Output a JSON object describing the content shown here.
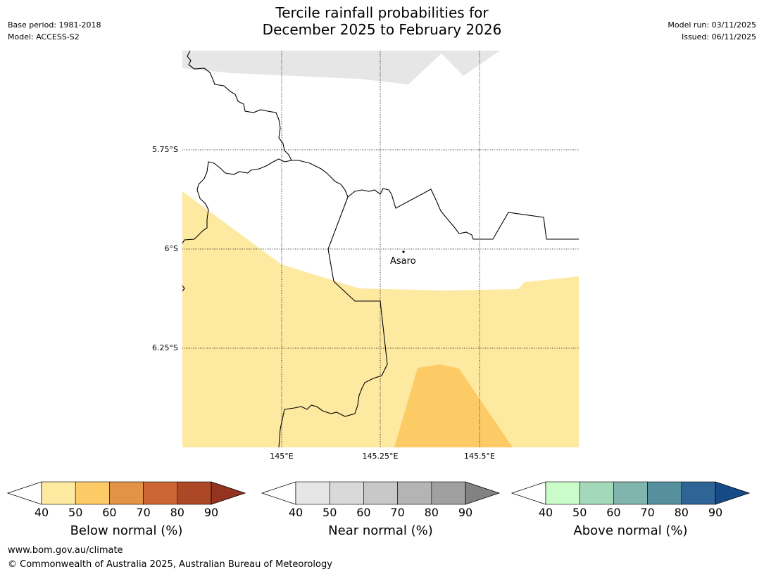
{
  "title": {
    "line1": "Tercile rainfall probabilities for",
    "line2": "December 2025 to February 2026"
  },
  "meta_left": {
    "base_period": "Base period: 1981-2018",
    "model": "Model: ACCESS-S2"
  },
  "meta_right": {
    "model_run": "Model run: 03/11/2025",
    "issued": "Issued: 06/11/2025"
  },
  "map": {
    "lat_labels": [
      "5.75°S",
      "6°S",
      "6.25°S"
    ],
    "lon_labels": [
      "145°E",
      "145.25°E",
      "145.5°E"
    ],
    "place": "Asaro",
    "colors": {
      "below_40_50": "#fee9a1",
      "below_50_60": "#fdcb65",
      "near_40_50": "#e6e6e6",
      "border": "#000000",
      "grid": "#000000"
    }
  },
  "colorbars": [
    {
      "title": "Below normal (%)",
      "ticks": [
        "40",
        "50",
        "60",
        "70",
        "80",
        "90"
      ],
      "colors": [
        "#fee9a1",
        "#fdcb65",
        "#e29346",
        "#cc6534",
        "#ad4826",
        "#943320"
      ]
    },
    {
      "title": "Near normal (%)",
      "ticks": [
        "40",
        "50",
        "60",
        "70",
        "80",
        "90"
      ],
      "colors": [
        "#e6e6e6",
        "#d9d9d9",
        "#c8c8c8",
        "#b4b4b4",
        "#a0a0a0",
        "#828282"
      ]
    },
    {
      "title": "Above normal (%)",
      "ticks": [
        "40",
        "50",
        "60",
        "70",
        "80",
        "90"
      ],
      "colors": [
        "#c9fcc9",
        "#a3d9ba",
        "#7fb5ac",
        "#56909e",
        "#2e6496",
        "#154a86"
      ]
    }
  ],
  "footer": {
    "url": "www.bom.gov.au/climate",
    "copyright": "© Commonwealth of Australia 2025, Australian Bureau of Meteorology"
  }
}
